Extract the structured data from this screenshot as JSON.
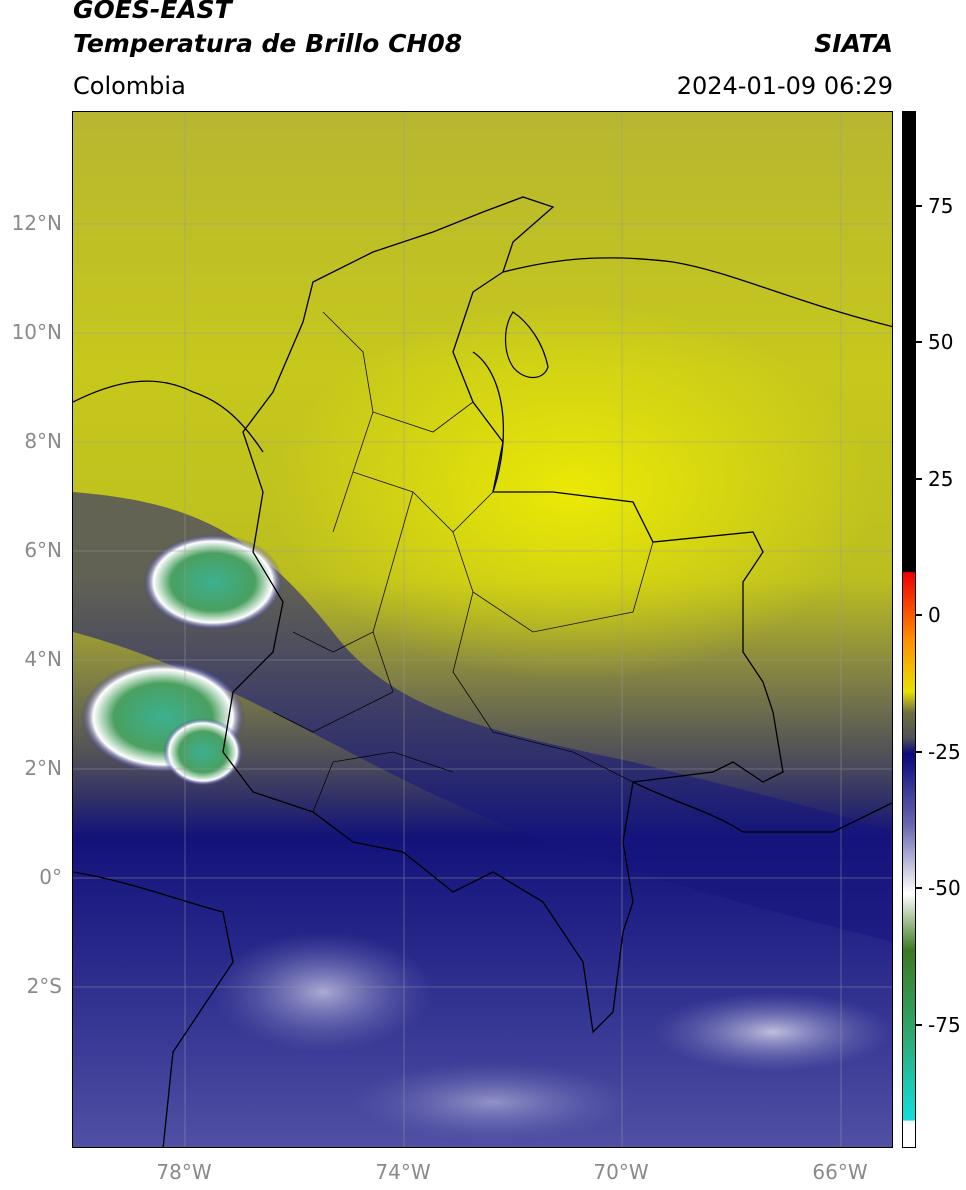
{
  "header": {
    "satellite": "GOES-EAST",
    "product": "Temperatura de Brillo CH08",
    "brand": "SIATA",
    "region": "Colombia",
    "timestamp": "2024-01-09 06:29"
  },
  "map": {
    "lat_labels": [
      "12°N",
      "10°N",
      "8°N",
      "6°N",
      "4°N",
      "2°N",
      "0°",
      "2°S"
    ],
    "lon_labels": [
      "78°W",
      "74°W",
      "70°W",
      "66°W"
    ],
    "lon_range": [
      -80,
      -65
    ],
    "lat_range": [
      -5,
      14
    ]
  },
  "colorbar": {
    "labels": [
      "75",
      "50",
      "25",
      "0",
      "-25",
      "-50",
      "-75"
    ],
    "range": [
      -95,
      90
    ],
    "colors": [
      "#ffffff",
      "#11dede",
      "#2ea870",
      "#3c7a20",
      "#ffffff",
      "#3a3a9c",
      "#0a0a80",
      "#505058",
      "#e8e000",
      "#ff9000",
      "#ee0000",
      "#000000"
    ]
  }
}
